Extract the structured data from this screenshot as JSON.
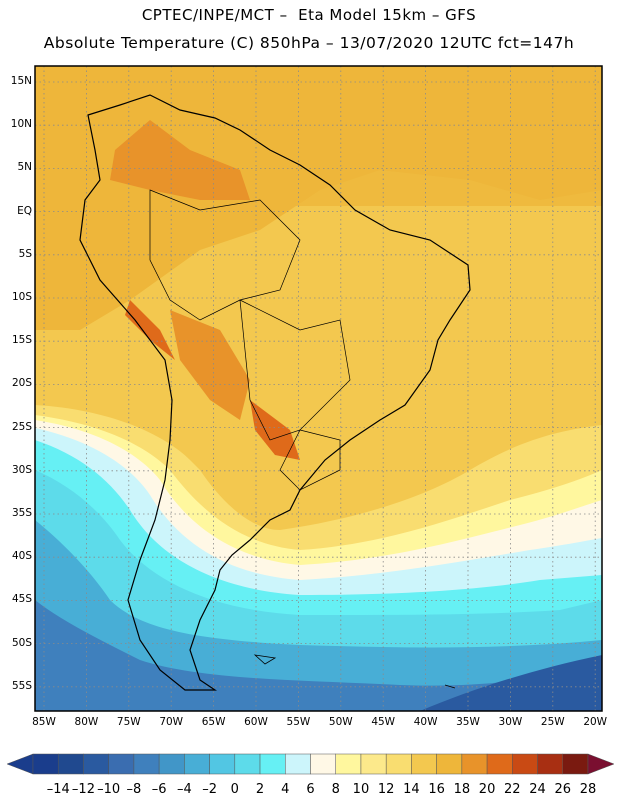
{
  "header": {
    "line1": "CPTEC/INPE/MCT –  Eta Model 15km – GFS",
    "line2": "Absolute Temperature (C) 850hPa – 13/07/2020 12UTC fct=147h"
  },
  "map": {
    "lat_labels": [
      "15N",
      "10N",
      "5N",
      "EQ",
      "5S",
      "10S",
      "15S",
      "20S",
      "25S",
      "30S",
      "35S",
      "40S",
      "45S",
      "50S",
      "55S"
    ],
    "lon_labels": [
      "85W",
      "80W",
      "75W",
      "70W",
      "65W",
      "60W",
      "55W",
      "50W",
      "45W",
      "40W",
      "35W",
      "30W",
      "25W",
      "20W"
    ],
    "gridlines": true,
    "grid_style": "dotted",
    "frame_color": "#000000"
  },
  "colorbar": {
    "labels": [
      "-14",
      "-12",
      "-10",
      "-8",
      "-6",
      "-4",
      "-2",
      "0",
      "2",
      "4",
      "6",
      "8",
      "10",
      "12",
      "14",
      "16",
      "18",
      "20",
      "22",
      "24",
      "26",
      "28"
    ],
    "colors": [
      "#1a3d8c",
      "#20498f",
      "#2a5aa0",
      "#3a6db0",
      "#3f80bd",
      "#4196c8",
      "#48aed6",
      "#52c6e3",
      "#5ddbea",
      "#66f0f4",
      "#ccf5fb",
      "#fff8e6",
      "#fff79e",
      "#fce98b",
      "#f9dd70",
      "#f3c84f",
      "#eeb63a",
      "#e8932a",
      "#df6a1a",
      "#c94a14",
      "#a82f12",
      "#7a1a10"
    ],
    "under_color": "#1a3d8c",
    "over_color": "#7a0f30"
  }
}
